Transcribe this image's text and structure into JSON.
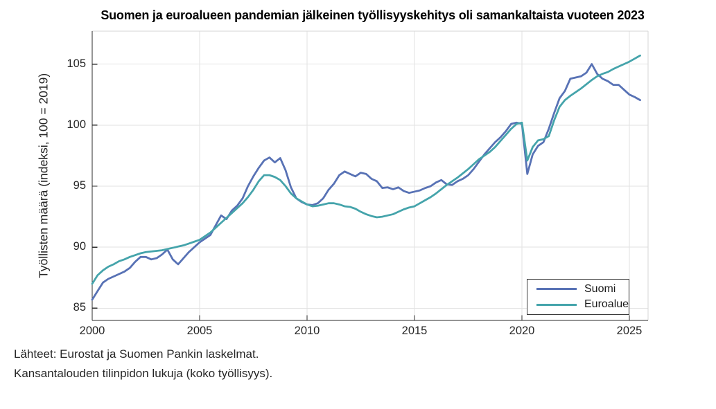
{
  "title": "Suomen ja euroalueen pandemian jälkeinen työllisyyskehitys oli samankaltaista vuoteen 2023",
  "y_axis": {
    "label": "Työllisten määrä (indeksi, 100 = 2019)",
    "ticks": [
      85,
      90,
      95,
      100,
      105
    ]
  },
  "x_axis": {
    "ticks": [
      2000,
      2005,
      2010,
      2015,
      2020,
      2025
    ]
  },
  "legend": {
    "items": [
      {
        "label": "Suomi",
        "color": "#5872b5"
      },
      {
        "label": "Euroalue",
        "color": "#45a4ab"
      }
    ],
    "position": "southeast"
  },
  "footer": {
    "line1": "Lähteet: Eurostat ja Suomen Pankin laskelmat.",
    "line2": "Kansantalouden tilinpidon lukuja (koko työllisyys)."
  },
  "plot_colors": {
    "grid": "#e2e2e2",
    "axis": "#2b2b2b",
    "box_light": "#d6d6d6",
    "background": "#ffffff"
  },
  "chart_data": {
    "type": "line",
    "title": "Suomen ja euroalueen pandemian jälkeinen työllisyyskehitys oli samankaltaista vuoteen 2023",
    "xlabel": "",
    "ylabel": "Työllisten määrä (indeksi, 100 = 2019)",
    "frequency": "quarterly",
    "x_start": 2000.0,
    "x_step": 0.25,
    "xlim": [
      2000,
      2025.87
    ],
    "ylim": [
      84.0,
      107.7
    ],
    "grid": true,
    "legend_position": "southeast",
    "series": [
      {
        "name": "Suomi",
        "color": "#5872b5",
        "values": [
          85.7,
          86.4,
          87.1,
          87.4,
          87.6,
          87.8,
          88.0,
          88.3,
          88.8,
          89.2,
          89.2,
          89.0,
          89.1,
          89.4,
          89.8,
          89.0,
          88.6,
          89.1,
          89.6,
          90.0,
          90.4,
          90.7,
          91.0,
          91.8,
          92.6,
          92.3,
          93.0,
          93.4,
          94.0,
          95.0,
          95.8,
          96.5,
          97.1,
          97.35,
          96.95,
          97.3,
          96.3,
          94.9,
          94.0,
          93.7,
          93.5,
          93.45,
          93.6,
          94.0,
          94.7,
          95.2,
          95.9,
          96.2,
          96.0,
          95.8,
          96.1,
          96.0,
          95.6,
          95.4,
          94.85,
          94.9,
          94.75,
          94.9,
          94.6,
          94.45,
          94.55,
          94.65,
          94.85,
          95.0,
          95.3,
          95.5,
          95.15,
          95.1,
          95.4,
          95.6,
          95.9,
          96.4,
          97.0,
          97.6,
          98.1,
          98.6,
          99.0,
          99.5,
          100.1,
          100.2,
          100.1,
          96.0,
          97.6,
          98.3,
          98.6,
          99.7,
          101.0,
          102.2,
          102.8,
          103.8,
          103.9,
          104.0,
          104.3,
          105.0,
          104.2,
          103.8,
          103.6,
          103.3,
          103.3,
          102.9,
          102.5,
          102.3,
          102.05
        ]
      },
      {
        "name": "Euroalue",
        "color": "#45a4ab",
        "values": [
          87.0,
          87.7,
          88.1,
          88.4,
          88.6,
          88.85,
          89.0,
          89.2,
          89.35,
          89.5,
          89.6,
          89.65,
          89.7,
          89.75,
          89.85,
          89.95,
          90.05,
          90.15,
          90.3,
          90.45,
          90.6,
          90.9,
          91.2,
          91.6,
          92.0,
          92.4,
          92.8,
          93.2,
          93.6,
          94.1,
          94.7,
          95.4,
          95.9,
          95.9,
          95.75,
          95.5,
          95.0,
          94.4,
          94.0,
          93.75,
          93.5,
          93.35,
          93.4,
          93.5,
          93.6,
          93.6,
          93.5,
          93.35,
          93.3,
          93.15,
          92.9,
          92.7,
          92.55,
          92.45,
          92.5,
          92.6,
          92.7,
          92.9,
          93.1,
          93.25,
          93.35,
          93.6,
          93.85,
          94.1,
          94.4,
          94.75,
          95.1,
          95.4,
          95.7,
          96.05,
          96.4,
          96.8,
          97.2,
          97.5,
          97.8,
          98.2,
          98.7,
          99.2,
          99.7,
          100.1,
          100.2,
          97.1,
          98.2,
          98.75,
          98.85,
          99.1,
          100.4,
          101.5,
          102.05,
          102.4,
          102.7,
          103.0,
          103.35,
          103.7,
          104.0,
          104.2,
          104.35,
          104.6,
          104.8,
          105.0,
          105.2,
          105.45,
          105.7
        ]
      }
    ]
  }
}
